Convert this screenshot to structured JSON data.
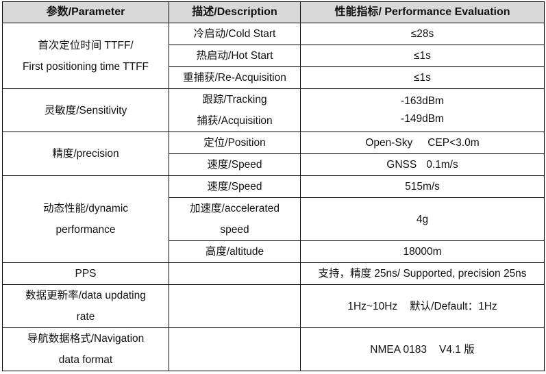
{
  "table": {
    "headers": [
      "参数/Parameter",
      "描述/Description",
      "性能指标/ Performance Evaluation"
    ],
    "groups": [
      {
        "parameter": [
          "首次定位时间 TTFF/",
          "First positioning time TTFF"
        ],
        "rows": [
          {
            "description": [
              "冷启动/Cold Start"
            ],
            "value": [
              "≤28s"
            ]
          },
          {
            "description": [
              "热启动/Hot Start"
            ],
            "value": [
              "≤1s"
            ]
          },
          {
            "description": [
              "重捕获/Re-Acquisition"
            ],
            "value": [
              "≤1s"
            ]
          }
        ]
      },
      {
        "parameter": [
          "灵敏度/Sensitivity"
        ],
        "rows": [
          {
            "description": [
              "跟踪/Tracking",
              "捕获/Acquisition"
            ],
            "value": [
              "-163dBm",
              "-149dBm"
            ]
          }
        ]
      },
      {
        "parameter": [
          "精度/precision"
        ],
        "rows": [
          {
            "description": [
              "定位/Position"
            ],
            "value": [
              "Open-Sky",
              "CEP<3.0m"
            ]
          },
          {
            "description": [
              "速度/Speed"
            ],
            "value": [
              "GNSS",
              "0.1m/s"
            ]
          }
        ]
      },
      {
        "parameter": [
          "动态性能/dynamic",
          "performance"
        ],
        "rows": [
          {
            "description": [
              "速度/Speed"
            ],
            "value": [
              "515m/s"
            ]
          },
          {
            "description": [
              "加速度/accelerated",
              "speed"
            ],
            "value": [
              "4g"
            ]
          },
          {
            "description": [
              "高度/altitude"
            ],
            "value": [
              "18000m"
            ]
          }
        ]
      },
      {
        "parameter": [
          "PPS"
        ],
        "rows": [
          {
            "description": [
              ""
            ],
            "value": [
              "支持，精度 25ns/ Supported, precision 25ns"
            ]
          }
        ]
      },
      {
        "parameter": [
          "数据更新率/data updating",
          "rate"
        ],
        "rows": [
          {
            "description": [
              ""
            ],
            "value": [
              "1Hz~10Hz",
              "默认/Default：1Hz"
            ]
          }
        ]
      },
      {
        "parameter": [
          "导航数据格式/Navigation",
          "data format"
        ],
        "rows": [
          {
            "description": [
              ""
            ],
            "value": [
              "NMEA 0183",
              "V4.1 版"
            ]
          }
        ]
      }
    ]
  }
}
